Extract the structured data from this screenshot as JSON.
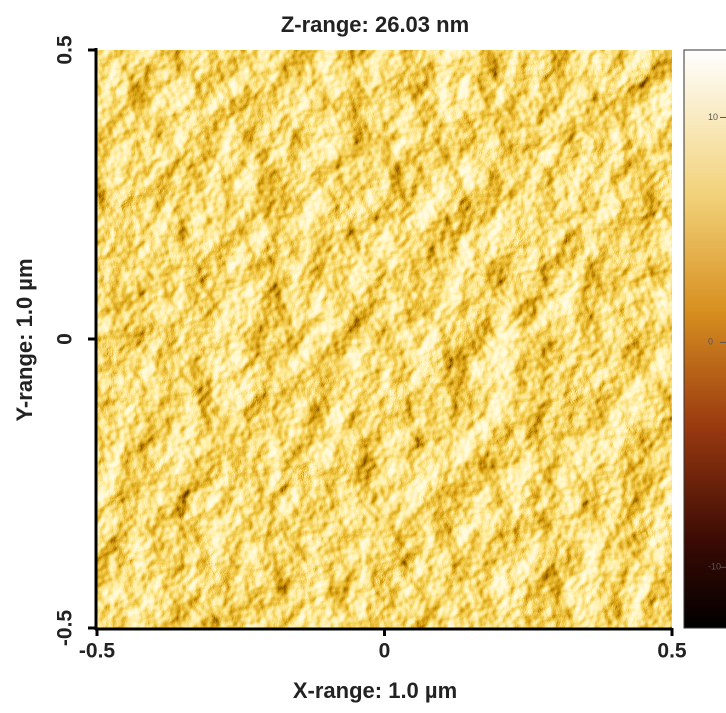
{
  "chart_data": {
    "type": "image",
    "title": "Z-range: 26.03 nm",
    "xlabel": "X-range: 1.0 µm",
    "ylabel": "Y-range: 1.0 µm",
    "xlim": [
      -0.5,
      0.5
    ],
    "xticks": [
      -0.5,
      0,
      0.5
    ],
    "ylim": [
      -0.5,
      0.5
    ],
    "yticks": [
      -0.5,
      0,
      0.5
    ],
    "clim": [
      -12.7,
      13
    ],
    "cticks": [
      -10,
      0,
      10
    ]
  }
}
